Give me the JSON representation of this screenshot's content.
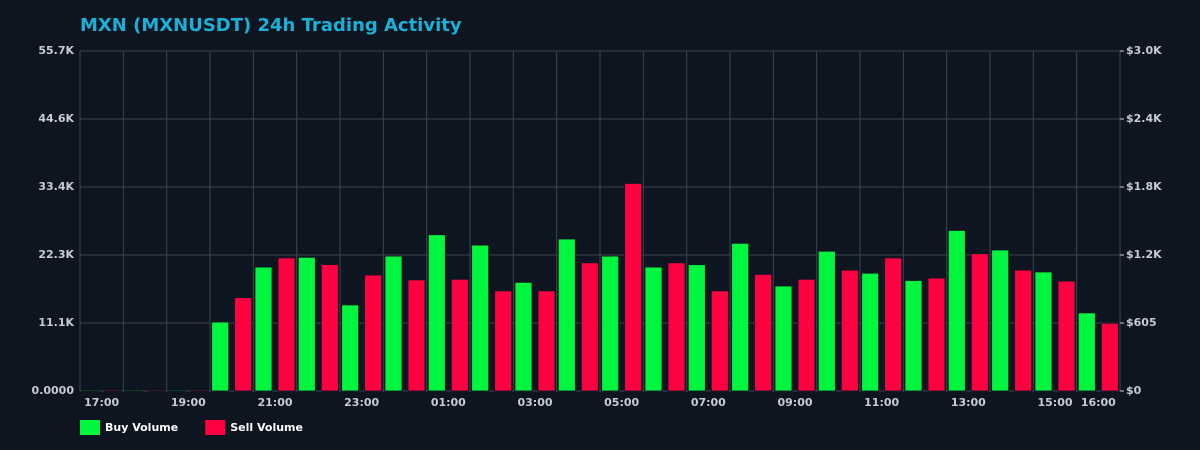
{
  "chart_data": {
    "type": "bar",
    "title": "MXN (MXNUSDT) 24h Trading Activity",
    "categories": [
      "17:00",
      null,
      "19:00",
      null,
      "21:00",
      null,
      "23:00",
      null,
      "01:00",
      null,
      "03:00",
      null,
      "05:00",
      null,
      "07:00",
      null,
      "09:00",
      null,
      "11:00",
      null,
      "13:00",
      null,
      "15:00",
      "16:00"
    ],
    "series": [
      {
        "name": "Buy Volume",
        "color": "#00f53f",
        "values": [
          150,
          150,
          150,
          11300,
          20300,
          21900,
          14100,
          22100,
          25600,
          23900,
          17800,
          24900,
          22100,
          20300,
          20700,
          24200,
          17200,
          22900,
          19300,
          18100,
          26300,
          23100,
          19500,
          12800
        ]
      },
      {
        "name": "Sell Volume",
        "color": "#ff0040",
        "values": [
          150,
          150,
          150,
          15300,
          21800,
          20700,
          19000,
          18200,
          18300,
          16400,
          16400,
          21000,
          34000,
          21000,
          16400,
          19100,
          18300,
          19800,
          21800,
          18500,
          22500,
          19800,
          18000,
          11100
        ]
      }
    ],
    "ylim": [
      0,
      55700
    ],
    "yticks": [
      {
        "value": 0,
        "label": "0.0000"
      },
      {
        "value": 11140,
        "label": "11.1K"
      },
      {
        "value": 22280,
        "label": "22.3K"
      },
      {
        "value": 33420,
        "label": "33.4K"
      },
      {
        "value": 44560,
        "label": "44.6K"
      },
      {
        "value": 55700,
        "label": "55.7K"
      }
    ],
    "y2lim": [
      0,
      3025
    ],
    "y2ticks": [
      {
        "value": 0,
        "label": "$0"
      },
      {
        "value": 605,
        "label": "$605"
      },
      {
        "value": 1210,
        "label": "$1.2K"
      },
      {
        "value": 1815,
        "label": "$1.8K"
      },
      {
        "value": 2420,
        "label": "$2.4K"
      },
      {
        "value": 3025,
        "label": "$3.0K"
      }
    ],
    "grid": true,
    "legend": "bottom-left"
  }
}
